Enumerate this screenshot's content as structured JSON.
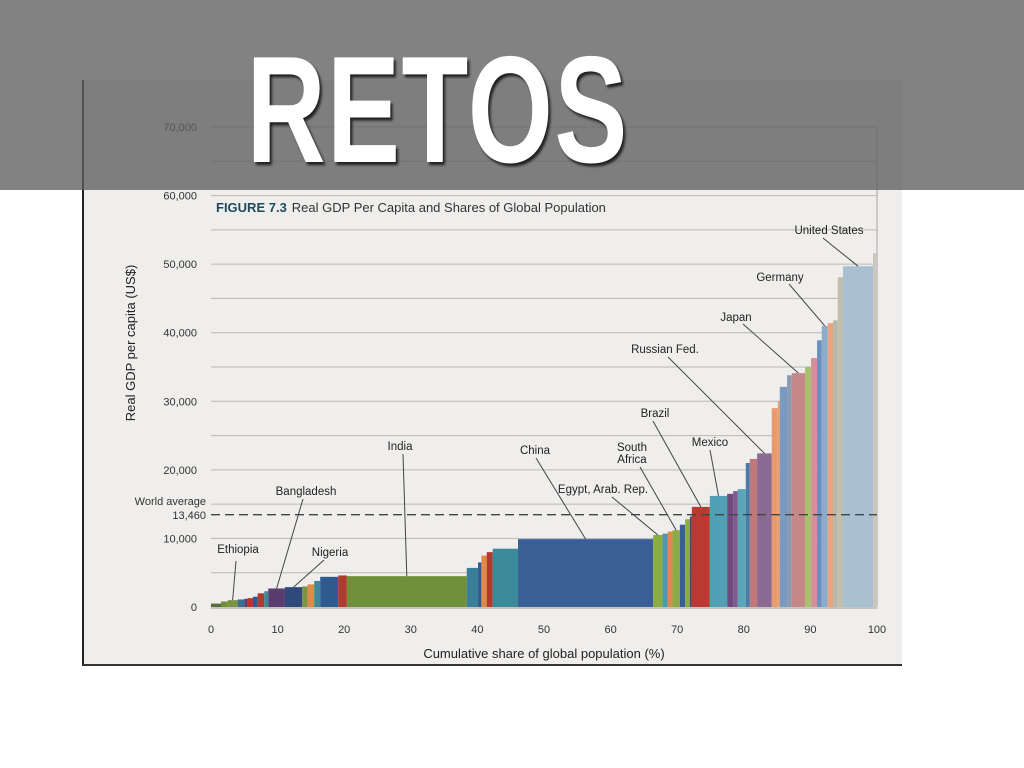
{
  "slide": {
    "title": "RETOS"
  },
  "chart_data": {
    "type": "bar",
    "figure_number": "FIGURE 7.3",
    "title": "Real GDP Per Capita and Shares of Global Population",
    "xlabel": "Cumulative share of global population (%)",
    "ylabel": "Real GDP per capita (US$)",
    "xlim": [
      0,
      100
    ],
    "ylim": [
      0,
      70000
    ],
    "x_ticks": [
      "0",
      "10",
      "20",
      "30",
      "40",
      "50",
      "60",
      "70",
      "80",
      "90",
      "100"
    ],
    "y_ticks": [
      "0",
      "10,000",
      "20,000",
      "30,000",
      "40,000",
      "50,000",
      "60,000",
      "70,000"
    ],
    "grid": true,
    "reference_line": {
      "label": "World average",
      "value_label": "13,460",
      "value": 13460
    },
    "segments": [
      {
        "x0": 0,
        "x1": 1.5,
        "value": 500,
        "color": "#5d6b3a"
      },
      {
        "x0": 1.5,
        "x1": 2.5,
        "value": 800,
        "color": "#6f8f3a"
      },
      {
        "x0": 2.5,
        "x1": 4,
        "value": 1000,
        "color": "#7a9440",
        "label": "Ethiopia"
      },
      {
        "x0": 4,
        "x1": 5,
        "value": 1100,
        "color": "#3a6e8f"
      },
      {
        "x0": 5,
        "x1": 5.5,
        "value": 1200,
        "color": "#5a3d6e"
      },
      {
        "x0": 5.5,
        "x1": 6.3,
        "value": 1300,
        "color": "#b03a2e"
      },
      {
        "x0": 6.3,
        "x1": 7,
        "value": 1500,
        "color": "#2e5a8f"
      },
      {
        "x0": 7,
        "x1": 8,
        "value": 2000,
        "color": "#b03a2e"
      },
      {
        "x0": 8,
        "x1": 8.6,
        "value": 2300,
        "color": "#3a8a9a"
      },
      {
        "x0": 8.6,
        "x1": 11.1,
        "value": 2700,
        "color": "#5a3d6e",
        "label": "Bangladesh"
      },
      {
        "x0": 11.1,
        "x1": 13.7,
        "value": 2900,
        "color": "#2f4a7a",
        "label": "Nigeria"
      },
      {
        "x0": 13.7,
        "x1": 14.5,
        "value": 3000,
        "color": "#7a9440"
      },
      {
        "x0": 14.5,
        "x1": 15.5,
        "value": 3300,
        "color": "#e08a4a"
      },
      {
        "x0": 15.5,
        "x1": 16.4,
        "value": 3800,
        "color": "#3a8a9a"
      },
      {
        "x0": 16.4,
        "x1": 19.1,
        "value": 4400,
        "color": "#2e5a8f"
      },
      {
        "x0": 19.1,
        "x1": 20.4,
        "value": 4600,
        "color": "#b03a2e"
      },
      {
        "x0": 20.4,
        "x1": 38.4,
        "value": 4500,
        "color": "#6f8f3a",
        "label": "India"
      },
      {
        "x0": 38.4,
        "x1": 40.1,
        "value": 5700,
        "color": "#3a7e9a"
      },
      {
        "x0": 40.1,
        "x1": 40.6,
        "value": 6500,
        "color": "#2e5a8f"
      },
      {
        "x0": 40.6,
        "x1": 41.4,
        "value": 7500,
        "color": "#e08a4a"
      },
      {
        "x0": 41.4,
        "x1": 42.3,
        "value": 8000,
        "color": "#b03a2e"
      },
      {
        "x0": 42.3,
        "x1": 46.1,
        "value": 8500,
        "color": "#3a8a9a"
      },
      {
        "x0": 46.1,
        "x1": 66.4,
        "value": 9900,
        "color": "#3a5e96",
        "label": "China"
      },
      {
        "x0": 66.4,
        "x1": 67.8,
        "value": 10500,
        "color": "#8aab45",
        "label": "Egypt, Arab. Rep."
      },
      {
        "x0": 67.8,
        "x1": 68.6,
        "value": 10700,
        "color": "#4a9aaa"
      },
      {
        "x0": 68.6,
        "x1": 69.3,
        "value": 11000,
        "color": "#e08a4a"
      },
      {
        "x0": 69.3,
        "x1": 70.4,
        "value": 11200,
        "color": "#8aab45",
        "label": "South Africa"
      },
      {
        "x0": 70.4,
        "x1": 71.2,
        "value": 12000,
        "color": "#3a5e96"
      },
      {
        "x0": 71.2,
        "x1": 71.9,
        "value": 12800,
        "color": "#8aab45"
      },
      {
        "x0": 71.9,
        "x1": 72.2,
        "value": 13200,
        "color": "#5a3d6e"
      },
      {
        "x0": 72.2,
        "x1": 74.9,
        "value": 14600,
        "color": "#b83a30",
        "label": "Brazil"
      },
      {
        "x0": 74.9,
        "x1": 77.5,
        "value": 16200,
        "color": "#4fa0b5",
        "label": "Mexico"
      },
      {
        "x0": 77.5,
        "x1": 78.4,
        "value": 16500,
        "color": "#6e4a7e"
      },
      {
        "x0": 78.4,
        "x1": 79.1,
        "value": 16900,
        "color": "#7e5a8e"
      },
      {
        "x0": 79.1,
        "x1": 80.3,
        "value": 17200,
        "color": "#5aa5b8"
      },
      {
        "x0": 80.3,
        "x1": 80.9,
        "value": 21000,
        "color": "#4a7aa8"
      },
      {
        "x0": 80.9,
        "x1": 82.0,
        "value": 21600,
        "color": "#c07878"
      },
      {
        "x0": 82.0,
        "x1": 84.2,
        "value": 22400,
        "color": "#8a6a92",
        "label": "Russian Fed."
      },
      {
        "x0": 84.2,
        "x1": 85.1,
        "value": 29000,
        "color": "#e89a6a"
      },
      {
        "x0": 85.1,
        "x1": 85.4,
        "value": 30000,
        "color": "#e8a070"
      },
      {
        "x0": 85.4,
        "x1": 86.5,
        "value": 32100,
        "color": "#7a9ac0"
      },
      {
        "x0": 86.5,
        "x1": 87.2,
        "value": 33800,
        "color": "#8a9ab0"
      },
      {
        "x0": 87.2,
        "x1": 89.2,
        "value": 34100,
        "color": "#c48888",
        "label": "Japan"
      },
      {
        "x0": 89.2,
        "x1": 90.1,
        "value": 35000,
        "color": "#a8c070"
      },
      {
        "x0": 90.1,
        "x1": 91.0,
        "value": 36300,
        "color": "#d49098"
      },
      {
        "x0": 91.0,
        "x1": 91.7,
        "value": 38900,
        "color": "#6a90c0"
      },
      {
        "x0": 91.7,
        "x1": 92.6,
        "value": 41000,
        "color": "#8aaccc",
        "label": "Germany"
      },
      {
        "x0": 92.6,
        "x1": 93.4,
        "value": 41400,
        "color": "#eaa580"
      },
      {
        "x0": 93.4,
        "x1": 94.1,
        "value": 41800,
        "color": "#b8b8a8"
      },
      {
        "x0": 94.1,
        "x1": 94.9,
        "value": 48100,
        "color": "#c0c0b0"
      },
      {
        "x0": 94.9,
        "x1": 99.4,
        "value": 49700,
        "color": "#a8c0d2",
        "label": "United States"
      },
      {
        "x0": 99.4,
        "x1": 100,
        "value": 51600,
        "color": "#c8c8bc"
      }
    ]
  }
}
